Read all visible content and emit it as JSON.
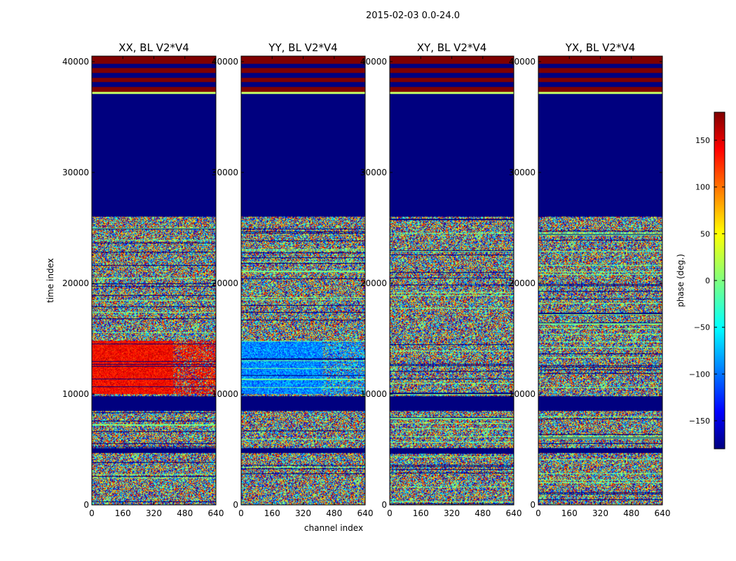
{
  "figure": {
    "suptitle": "2015-02-03 0.0-24.0"
  },
  "chart_data": {
    "type": "heatmap",
    "xlabel": "channel index",
    "ylabel": "time index",
    "xlim": [
      0,
      640
    ],
    "ylim": [
      0,
      40500
    ],
    "x_ticks": [
      0,
      160,
      320,
      480,
      640
    ],
    "y_ticks": [
      0,
      10000,
      20000,
      30000,
      40000
    ],
    "panels": [
      {
        "title": "XX, BL V2*V4",
        "feature": "red"
      },
      {
        "title": "YY, BL V2*V4",
        "feature": "blue"
      },
      {
        "title": "XY, BL V2*V4",
        "feature": "none"
      },
      {
        "title": "YX, BL V2*V4",
        "feature": "none"
      }
    ],
    "bands": {
      "flagged": [
        [
          26000,
          37100,
          "navy"
        ],
        [
          8500,
          9800,
          "navy"
        ],
        [
          4700,
          5100,
          "navy"
        ],
        [
          37100,
          37300,
          "yellow"
        ],
        [
          37300,
          40500,
          "red-stripes"
        ]
      ],
      "feature": [
        10000,
        14800
      ]
    },
    "colorbar": {
      "label": "phase (deg.)",
      "vmin": -180,
      "vmax": 180,
      "ticks": [
        150,
        100,
        50,
        0,
        -50,
        -100,
        -150
      ],
      "tick_labels": [
        "150",
        "100",
        "50",
        "0",
        "−50",
        "−100",
        "−150"
      ],
      "colormap": "jet"
    }
  }
}
